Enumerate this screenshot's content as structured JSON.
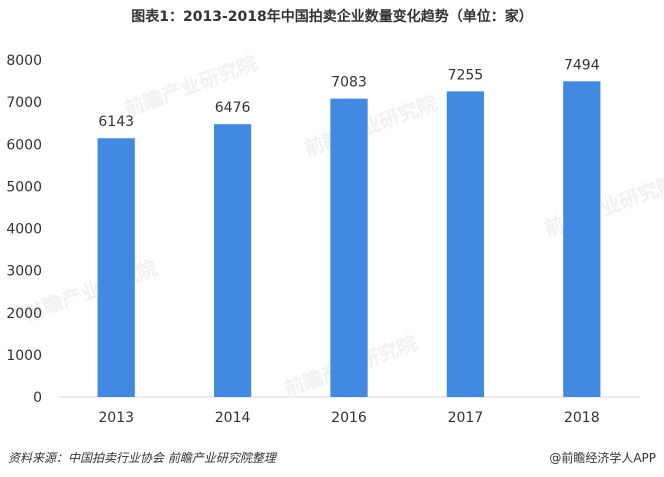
{
  "title": "图表1：2013-2018年中国拍卖企业数量变化趋势（单位：家）",
  "watermark": "前瞻产业研究院",
  "footer": {
    "source": "资料来源：中国拍卖行业协会 前瞻产业研究院整理",
    "brand": "@前瞻经济学人APP"
  },
  "chart_data": {
    "type": "bar",
    "title": "图表1：2013-2018年中国拍卖企业数量变化趋势（单位：家）",
    "categories": [
      "2013",
      "2014",
      "2016",
      "2017",
      "2018"
    ],
    "values": [
      6143,
      6476,
      7083,
      7255,
      7494
    ],
    "ylim": [
      0,
      8000
    ],
    "yticks": [
      0,
      1000,
      2000,
      3000,
      4000,
      5000,
      6000,
      7000,
      8000
    ],
    "bar_color": "#4189E1",
    "grid": false,
    "legend": "none"
  }
}
